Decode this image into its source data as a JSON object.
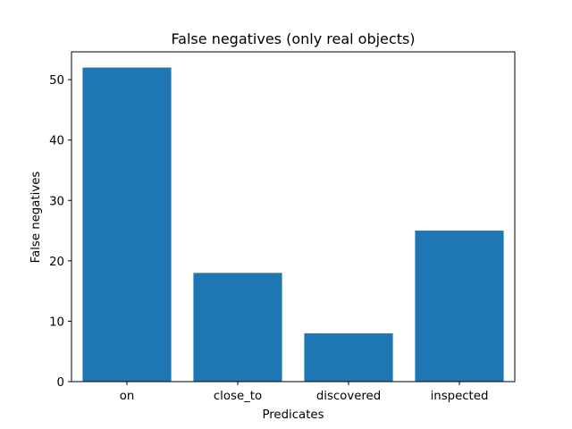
{
  "chart_data": {
    "type": "bar",
    "title": "False negatives (only real objects)",
    "xlabel": "Predicates",
    "ylabel": "False negatives",
    "categories": [
      "on",
      "close_to",
      "discovered",
      "inspected"
    ],
    "values": [
      52,
      18,
      8,
      25
    ],
    "ylim": [
      0,
      54.6
    ],
    "yticks": [
      0,
      10,
      20,
      30,
      40,
      50
    ],
    "grid": false,
    "legend": "none",
    "bar_color": "#1f77b4"
  }
}
